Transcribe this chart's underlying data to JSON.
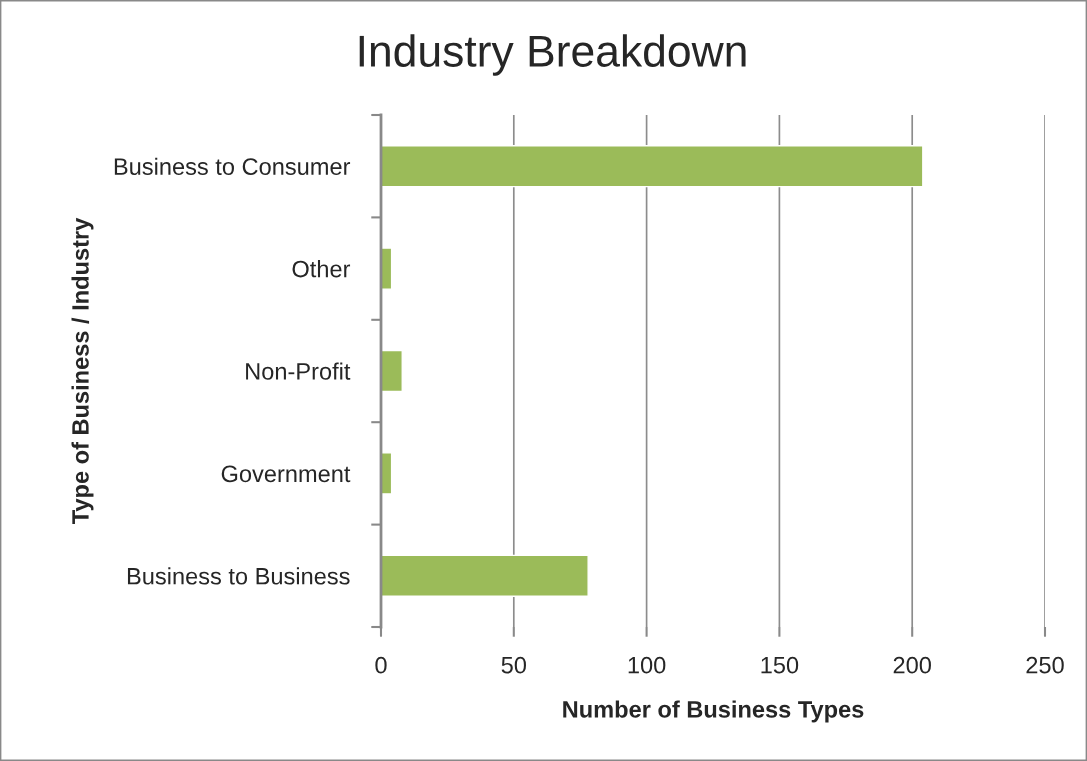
{
  "chart_data": {
    "type": "bar",
    "orientation": "horizontal",
    "title": "Industry Breakdown",
    "xlabel": "Number of Business Types",
    "ylabel": "Type of Business / Industry",
    "categories": [
      "Business to Consumer",
      "Other",
      "Non-Profit",
      "Government",
      "Business to Business"
    ],
    "values": [
      204,
      4,
      8,
      4,
      78
    ],
    "color": "#9bbb59",
    "xlim": [
      0,
      250
    ],
    "xticks": [
      0,
      50,
      100,
      150,
      200,
      250
    ],
    "grid": "x",
    "legend": false
  }
}
